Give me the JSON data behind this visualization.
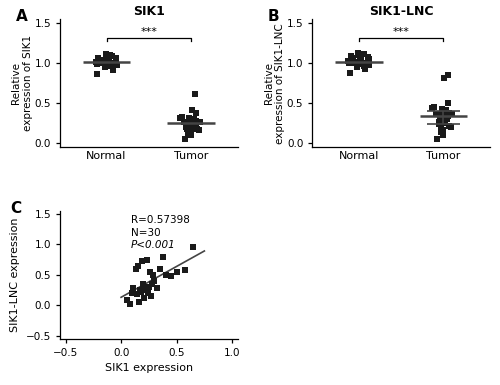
{
  "title_A": "SIK1",
  "title_B": "SIK1-LNC",
  "ylabel_A": "Relative\nexpression of SIK1",
  "ylabel_B": "Relative\nexpression of SIK1-LNC",
  "xlabel_C": "SIK1 expression",
  "ylabel_C": "SIK1-LNC expression",
  "label_A": "A",
  "label_B": "B",
  "label_C": "C",
  "sig_text": "***",
  "corr_text_R": "R=0.57398",
  "corr_text_N": "N=30",
  "corr_text_P": "P<0.001",
  "normal_sik1": [
    0.87,
    0.92,
    0.95,
    0.97,
    0.98,
    0.98,
    0.99,
    0.99,
    1.0,
    1.0,
    1.0,
    1.0,
    1.0,
    1.0,
    1.01,
    1.01,
    1.01,
    1.02,
    1.02,
    1.02,
    1.03,
    1.03,
    1.04,
    1.05,
    1.06,
    1.07,
    1.08,
    1.09,
    1.1,
    1.12
  ],
  "tumor_sik1": [
    0.05,
    0.1,
    0.12,
    0.14,
    0.15,
    0.16,
    0.17,
    0.18,
    0.19,
    0.2,
    0.21,
    0.22,
    0.23,
    0.24,
    0.25,
    0.25,
    0.26,
    0.27,
    0.27,
    0.28,
    0.28,
    0.29,
    0.3,
    0.3,
    0.31,
    0.32,
    0.33,
    0.38,
    0.42,
    0.62
  ],
  "normal_lnc": [
    0.88,
    0.93,
    0.95,
    0.97,
    0.98,
    0.99,
    0.99,
    1.0,
    1.0,
    1.0,
    1.0,
    1.0,
    1.01,
    1.01,
    1.01,
    1.02,
    1.02,
    1.02,
    1.03,
    1.03,
    1.04,
    1.05,
    1.06,
    1.07,
    1.08,
    1.09,
    1.1,
    1.11,
    1.12,
    1.13
  ],
  "tumor_lnc": [
    0.05,
    0.1,
    0.14,
    0.16,
    0.18,
    0.2,
    0.22,
    0.24,
    0.25,
    0.27,
    0.28,
    0.3,
    0.3,
    0.32,
    0.33,
    0.34,
    0.35,
    0.36,
    0.37,
    0.38,
    0.38,
    0.4,
    0.41,
    0.42,
    0.43,
    0.44,
    0.45,
    0.5,
    0.82,
    0.85
  ],
  "sik1_corr": [
    0.05,
    0.08,
    0.1,
    0.11,
    0.13,
    0.14,
    0.15,
    0.16,
    0.17,
    0.18,
    0.19,
    0.2,
    0.21,
    0.22,
    0.23,
    0.24,
    0.25,
    0.26,
    0.27,
    0.28,
    0.29,
    0.3,
    0.32,
    0.35,
    0.38,
    0.4,
    0.45,
    0.5,
    0.58,
    0.65
  ],
  "lnc_corr": [
    0.08,
    0.02,
    0.2,
    0.28,
    0.6,
    0.18,
    0.65,
    0.05,
    0.25,
    0.22,
    0.72,
    0.35,
    0.12,
    0.25,
    0.75,
    0.2,
    0.3,
    0.55,
    0.15,
    0.35,
    0.5,
    0.4,
    0.28,
    0.6,
    0.8,
    0.5,
    0.48,
    0.55,
    0.58,
    0.95
  ],
  "dot_color": "#1a1a1a",
  "line_color": "#444444",
  "scatter_color": "#1a1a1a",
  "bg_color": "#ffffff",
  "ylim_AB": [
    -0.05,
    1.55
  ],
  "yticks_AB": [
    0.0,
    0.5,
    1.0,
    1.5
  ],
  "ylim_C": [
    -0.55,
    1.55
  ],
  "yticks_C": [
    -0.5,
    0.0,
    0.5,
    1.0,
    1.5
  ],
  "xlim_C": [
    -0.55,
    1.05
  ],
  "xticks_C": [
    -0.5,
    0.0,
    0.5,
    1.0
  ]
}
